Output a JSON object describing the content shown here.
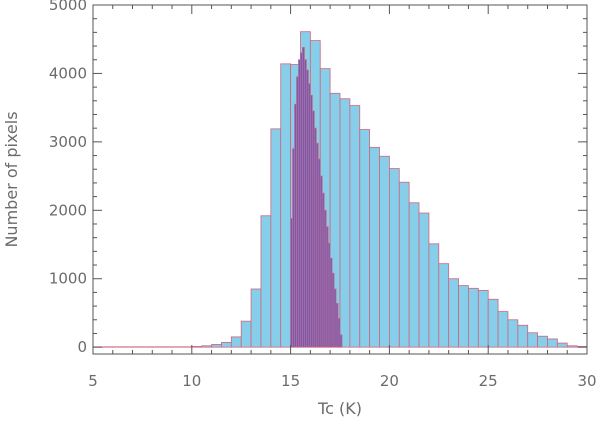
{
  "chart_data": {
    "type": "bar",
    "title": "",
    "xlabel": "Tc (K)",
    "ylabel": "Number of pixels",
    "xlim": [
      5,
      30
    ],
    "ylim": [
      -100,
      5000
    ],
    "x_ticks": [
      5,
      10,
      15,
      20,
      25,
      30
    ],
    "y_ticks": [
      0,
      1000,
      2000,
      3000,
      4000,
      5000
    ],
    "x_tick_labels": [
      "5",
      "10",
      "15",
      "20",
      "25",
      "30"
    ],
    "y_tick_labels": [
      "0",
      "1000",
      "2000",
      "3000",
      "4000",
      "5000"
    ],
    "grid": false,
    "legend": "none",
    "series": [
      {
        "bin_width": 0.5,
        "color": "#87ceeb",
        "edge_color": "#d0667a",
        "bins": [
          [
            5.0,
            5
          ],
          [
            5.5,
            5
          ],
          [
            6.0,
            5
          ],
          [
            6.5,
            5
          ],
          [
            7.0,
            5
          ],
          [
            7.5,
            5
          ],
          [
            8.0,
            5
          ],
          [
            8.5,
            5
          ],
          [
            9.0,
            5
          ],
          [
            9.5,
            5
          ],
          [
            10.0,
            10
          ],
          [
            10.5,
            20
          ],
          [
            11.0,
            40
          ],
          [
            11.5,
            70
          ],
          [
            12.0,
            150
          ],
          [
            12.5,
            380
          ],
          [
            13.0,
            850
          ],
          [
            13.5,
            1920
          ],
          [
            14.0,
            3190
          ],
          [
            14.5,
            4140
          ],
          [
            15.0,
            4130
          ],
          [
            15.5,
            4610
          ],
          [
            16.0,
            4480
          ],
          [
            16.5,
            4070
          ],
          [
            17.0,
            3710
          ],
          [
            17.5,
            3630
          ],
          [
            18.0,
            3530
          ],
          [
            18.5,
            3180
          ],
          [
            19.0,
            2920
          ],
          [
            19.5,
            2790
          ],
          [
            20.0,
            2610
          ],
          [
            20.5,
            2410
          ],
          [
            21.0,
            2110
          ],
          [
            21.5,
            1960
          ],
          [
            22.0,
            1510
          ],
          [
            22.5,
            1220
          ],
          [
            23.0,
            1000
          ],
          [
            23.5,
            900
          ],
          [
            24.0,
            860
          ],
          [
            24.5,
            830
          ],
          [
            25.0,
            700
          ],
          [
            25.5,
            520
          ],
          [
            26.0,
            400
          ],
          [
            26.5,
            320
          ],
          [
            27.0,
            210
          ],
          [
            27.5,
            160
          ],
          [
            28.0,
            120
          ],
          [
            28.5,
            60
          ],
          [
            29.0,
            20
          ],
          [
            29.5,
            10
          ]
        ]
      },
      {
        "bin_width": 0.1,
        "color": "#6060c8",
        "edge_color": "#d0667a",
        "bins": [
          [
            15.0,
            1880
          ],
          [
            15.1,
            2900
          ],
          [
            15.2,
            3550
          ],
          [
            15.3,
            3950
          ],
          [
            15.4,
            4200
          ],
          [
            15.5,
            4300
          ],
          [
            15.6,
            4380
          ],
          [
            15.7,
            4200
          ],
          [
            15.8,
            4050
          ],
          [
            15.9,
            3850
          ],
          [
            16.0,
            3680
          ],
          [
            16.1,
            3450
          ],
          [
            16.2,
            3200
          ],
          [
            16.3,
            2980
          ],
          [
            16.4,
            2750
          ],
          [
            16.5,
            2500
          ],
          [
            16.6,
            2250
          ],
          [
            16.7,
            2000
          ],
          [
            16.8,
            1760
          ],
          [
            16.9,
            1520
          ],
          [
            17.0,
            1300
          ],
          [
            17.1,
            1080
          ],
          [
            17.2,
            850
          ],
          [
            17.3,
            640
          ],
          [
            17.4,
            420
          ],
          [
            17.5,
            180
          ]
        ]
      }
    ]
  }
}
